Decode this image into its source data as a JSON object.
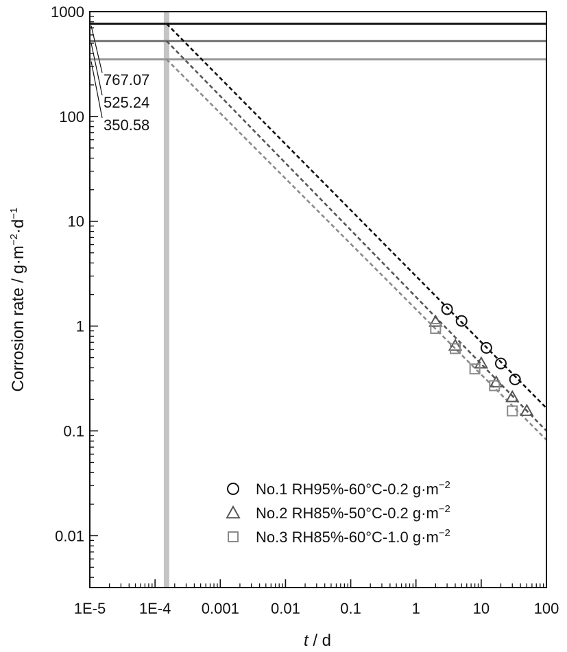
{
  "chart_data": {
    "type": "scatter",
    "x_scale": "log",
    "y_scale": "log",
    "xlim": [
      1e-05,
      100
    ],
    "ylim": [
      0.0032,
      1000
    ],
    "x_ticks": [
      {
        "value": 1e-05,
        "label": "1E-5"
      },
      {
        "value": 0.0001,
        "label": "1E-4"
      },
      {
        "value": 0.001,
        "label": "0.001"
      },
      {
        "value": 0.01,
        "label": "0.01"
      },
      {
        "value": 0.1,
        "label": "0.1"
      },
      {
        "value": 1,
        "label": "1"
      },
      {
        "value": 10,
        "label": "10"
      },
      {
        "value": 100,
        "label": "100"
      }
    ],
    "y_ticks": [
      {
        "value": 1000,
        "label": "1000"
      },
      {
        "value": 100,
        "label": "100"
      },
      {
        "value": 10,
        "label": "10"
      },
      {
        "value": 1,
        "label": "1"
      },
      {
        "value": 0.1,
        "label": "0.1"
      },
      {
        "value": 0.01,
        "label": "0.01"
      }
    ],
    "xlabel": {
      "italic": "t",
      "rest": " / d"
    },
    "ylabel": {
      "base": "Corrosion rate / g·m",
      "exp1": "−2",
      "mid": "·d",
      "exp2": "−1"
    },
    "grid": false,
    "legend_position": "bottom-right",
    "vertical_band_x": 0.00015,
    "series": [
      {
        "name": "No.1 RH95%-60°C-0.2 g·m",
        "name_exp": "−2",
        "marker": "circle",
        "color": "#111111",
        "points": [
          [
            3,
            1.45
          ],
          [
            5,
            1.12
          ],
          [
            12,
            0.62
          ],
          [
            20,
            0.44
          ],
          [
            33,
            0.31
          ]
        ],
        "fit": [
          [
            0.00015,
            767.07
          ],
          [
            100,
            0.165
          ]
        ],
        "intercept_label": "767.07",
        "hline_y": 767.07,
        "hline_color": "#111111"
      },
      {
        "name": "No.2 RH85%-50°C-0.2 g·m",
        "name_exp": "−2",
        "marker": "triangle",
        "color": "#555555",
        "points": [
          [
            2,
            1.1
          ],
          [
            4,
            0.65
          ],
          [
            10,
            0.44
          ],
          [
            17,
            0.29
          ],
          [
            30,
            0.21
          ],
          [
            50,
            0.155
          ]
        ],
        "fit": [
          [
            0.00015,
            525.24
          ],
          [
            100,
            0.1
          ]
        ],
        "intercept_label": "525.24",
        "hline_y": 525.24,
        "hline_color": "#707070"
      },
      {
        "name": "No.3 RH85%-60°C-1.0 g·m",
        "name_exp": "−2",
        "marker": "square",
        "color": "#8a8a8a",
        "points": [
          [
            2,
            0.95
          ],
          [
            4,
            0.61
          ],
          [
            8,
            0.39
          ],
          [
            16,
            0.27
          ],
          [
            30,
            0.155
          ]
        ],
        "fit": [
          [
            0.00015,
            350.58
          ],
          [
            100,
            0.082
          ]
        ],
        "intercept_label": "350.58",
        "hline_y": 350.58,
        "hline_color": "#999999"
      }
    ]
  }
}
